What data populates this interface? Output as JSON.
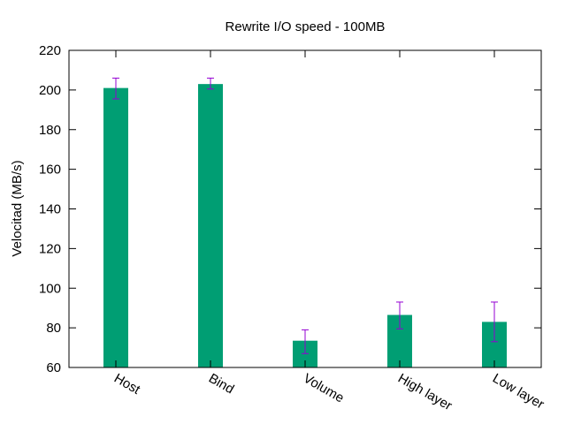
{
  "chart_data": {
    "type": "bar",
    "title": "Rewrite I/O speed - 100MB",
    "xlabel": "",
    "ylabel": "Velocitad (MB/s)",
    "ylim": [
      60,
      220
    ],
    "yticks": [
      60,
      80,
      100,
      120,
      140,
      160,
      180,
      200,
      220
    ],
    "ytick_labels": [
      "60",
      "80",
      "100",
      "120",
      "140",
      "160",
      "180",
      "200",
      "220"
    ],
    "categories": [
      "Host",
      "Bind",
      "Volume",
      "High layer",
      "Low layer"
    ],
    "values": [
      201,
      203,
      73.5,
      86.5,
      83
    ],
    "error_low": [
      195.5,
      200.5,
      67,
      79.5,
      73
    ],
    "error_high": [
      206,
      206,
      79,
      93,
      93
    ],
    "grid": false,
    "legend": "none",
    "colors": {
      "bar": "#009e73",
      "error": "#9400d3",
      "axis": "#000000"
    }
  }
}
